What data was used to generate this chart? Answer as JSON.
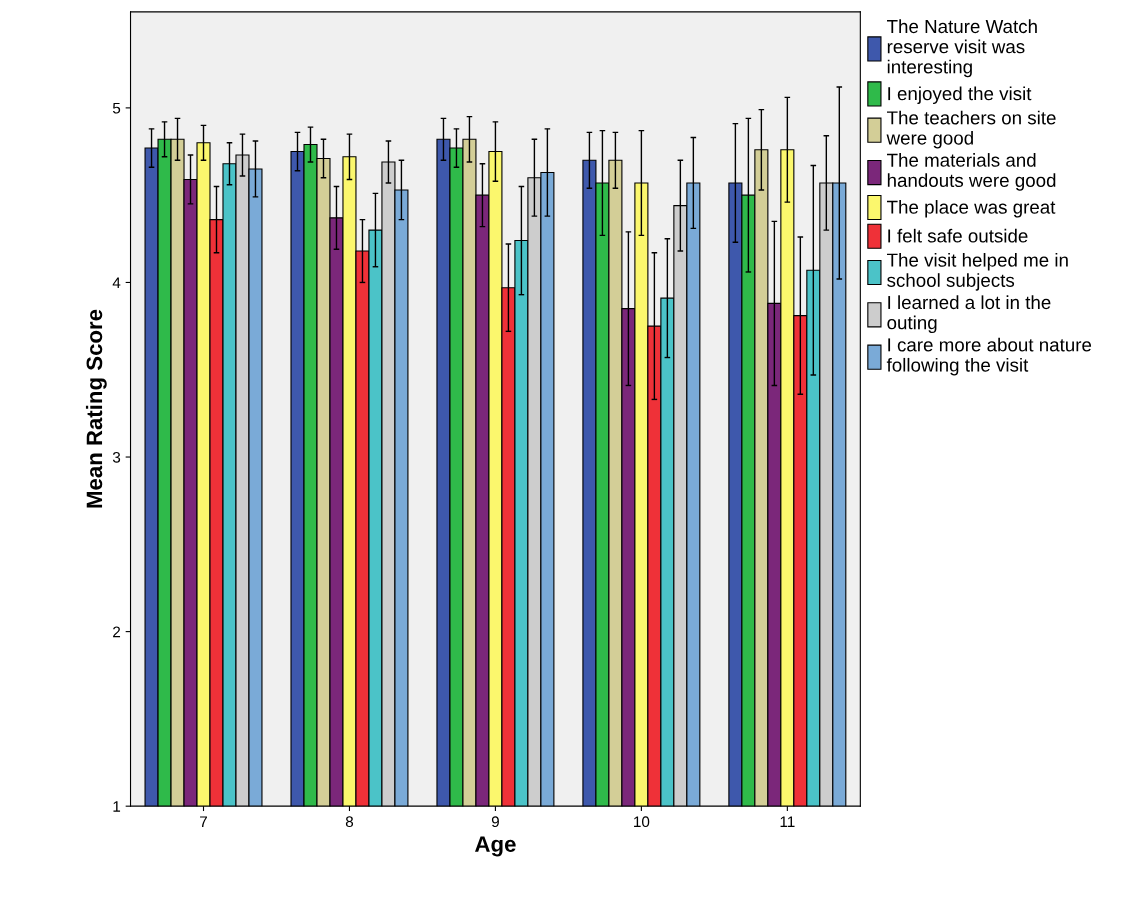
{
  "chart_data": {
    "type": "bar",
    "xlabel": "Age",
    "ylabel": "Mean Rating Score",
    "categories": [
      "7",
      "8",
      "9",
      "10",
      "11"
    ],
    "ylim": [
      1,
      5.55
    ],
    "yticks": [
      1,
      2,
      3,
      4,
      5
    ],
    "grid": false,
    "legend": "right",
    "series": [
      {
        "name": "The Nature Watch\nreserve visit was\ninteresting",
        "color": "#3e58ac",
        "values": [
          4.77,
          4.75,
          4.82,
          4.7,
          4.57
        ],
        "errors": [
          0.11,
          0.11,
          0.12,
          0.16,
          0.34
        ]
      },
      {
        "name": "I enjoyed the visit",
        "color": "#2fba4a",
        "values": [
          4.82,
          4.79,
          4.77,
          4.57,
          4.5
        ],
        "errors": [
          0.1,
          0.1,
          0.11,
          0.3,
          0.44
        ]
      },
      {
        "name": "The teachers on site\nwere good",
        "color": "#d3ce97",
        "values": [
          4.82,
          4.71,
          4.82,
          4.7,
          4.76
        ],
        "errors": [
          0.12,
          0.11,
          0.13,
          0.16,
          0.23
        ]
      },
      {
        "name": "The materials and\nhandouts were good",
        "color": "#7b277a",
        "values": [
          4.59,
          4.37,
          4.5,
          3.85,
          3.88
        ],
        "errors": [
          0.14,
          0.18,
          0.18,
          0.44,
          0.47
        ]
      },
      {
        "name": "The place was great",
        "color": "#fbf76d",
        "values": [
          4.8,
          4.72,
          4.75,
          4.57,
          4.76
        ],
        "errors": [
          0.1,
          0.13,
          0.17,
          0.3,
          0.3
        ]
      },
      {
        "name": "I felt safe outside",
        "color": "#ef3138",
        "values": [
          4.36,
          4.18,
          3.97,
          3.75,
          3.81
        ],
        "errors": [
          0.19,
          0.18,
          0.25,
          0.42,
          0.45
        ]
      },
      {
        "name": "The visit helped me in\nschool subjects",
        "color": "#4bc3c8",
        "values": [
          4.68,
          4.3,
          4.24,
          3.91,
          4.07
        ],
        "errors": [
          0.12,
          0.21,
          0.31,
          0.34,
          0.6
        ]
      },
      {
        "name": "I learned a lot in the\nouting",
        "color": "#cdcdcd",
        "values": [
          4.73,
          4.69,
          4.6,
          4.44,
          4.57
        ],
        "errors": [
          0.12,
          0.12,
          0.22,
          0.26,
          0.27
        ]
      },
      {
        "name": "I care more about nature\nfollowing the visit",
        "color": "#7aaad7",
        "values": [
          4.65,
          4.53,
          4.63,
          4.57,
          4.57
        ],
        "errors": [
          0.16,
          0.17,
          0.25,
          0.26,
          0.55
        ]
      }
    ]
  }
}
